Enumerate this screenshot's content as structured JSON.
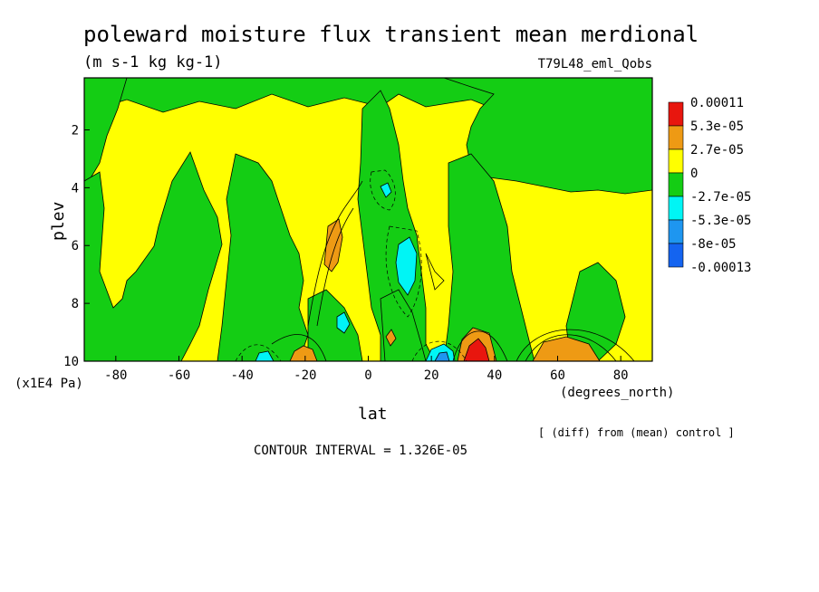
{
  "figure": {
    "title": "poleward moisture flux transient mean merdional",
    "units": "(m s-1 kg kg-1)",
    "run_label": "T79L48_eml_Qobs",
    "y_unit_label": "(x1E4 Pa)",
    "x_unit_label": "(degrees_north)",
    "diff_note": "[ (diff) from (mean) control ]",
    "contour_interval": "CONTOUR INTERVAL = 1.326E-05"
  },
  "chart_data": {
    "type": "heatmap",
    "xlabel": "lat",
    "ylabel": "plev",
    "xlim": [
      -90,
      90
    ],
    "ylim": [
      0.2,
      10
    ],
    "y_inverted": true,
    "x_ticks": [
      -80,
      -60,
      -40,
      -20,
      0,
      20,
      40,
      60,
      80
    ],
    "x_tick_labels": [
      "-80",
      "-60",
      "-40",
      "-20",
      "0",
      "20",
      "40",
      "60",
      "80"
    ],
    "y_ticks": [
      2,
      4,
      6,
      8,
      10
    ],
    "y_tick_labels": [
      "2",
      "4",
      "6",
      "8",
      "10"
    ],
    "colorbar": {
      "labels": [
        "0.00011",
        "5.3e-05",
        "2.7e-05",
        "0",
        "-2.7e-05",
        "-5.3e-05",
        "-8e-05",
        "-0.00013"
      ],
      "colors": [
        "#e8160e",
        "#ee9a14",
        "#ffff00",
        "#14cd14",
        "#00f5f5",
        "#1e96f0",
        "#1464f0"
      ]
    },
    "background_level": "0 to 2.7e-05",
    "regions": [
      {
        "level": "2.7e-05 to 5.3e-05",
        "color": "#ee9a14",
        "lat": [
          -22,
          -18
        ],
        "plev": [
          9.4,
          10
        ]
      },
      {
        "level": "5.3e-05 to 0.00011",
        "color": "#e8160e",
        "lat": [
          32,
          36
        ],
        "plev": [
          9.3,
          10
        ]
      },
      {
        "level": "2.7e-05 to 5.3e-05",
        "color": "#ee9a14",
        "lat": [
          29,
          38
        ],
        "plev": [
          9.0,
          10
        ]
      },
      {
        "level": "2.7e-05 to 5.3e-05",
        "color": "#ee9a14",
        "lat": [
          51,
          68
        ],
        "plev": [
          9.3,
          10
        ]
      },
      {
        "level": "2.7e-05 to 5.3e-05",
        "color": "#ee9a14",
        "lat": [
          -13,
          -9
        ],
        "plev": [
          5.5,
          7.5
        ]
      },
      {
        "level": "-2.7e-05 to -5.3e-05",
        "color": "#00f5f5",
        "lat": [
          -35,
          -31
        ],
        "plev": [
          9.6,
          10
        ]
      },
      {
        "level": "-2.7e-05 to -5.3e-05",
        "color": "#00f5f5",
        "lat": [
          20,
          27
        ],
        "plev": [
          9.5,
          10
        ]
      },
      {
        "level": "-2.7e-05 to -5.3e-05",
        "color": "#00f5f5",
        "lat": [
          10,
          15
        ],
        "plev": [
          6.0,
          8.0
        ]
      },
      {
        "level": "-2.7e-05 to -5.3e-05",
        "color": "#00f5f5",
        "lat": [
          5,
          7
        ],
        "plev": [
          3.8,
          4.2
        ]
      },
      {
        "level": "-5.3e-05 to -8e-05",
        "color": "#1e96f0",
        "lat": [
          23,
          25
        ],
        "plev": [
          9.7,
          10
        ]
      }
    ]
  }
}
